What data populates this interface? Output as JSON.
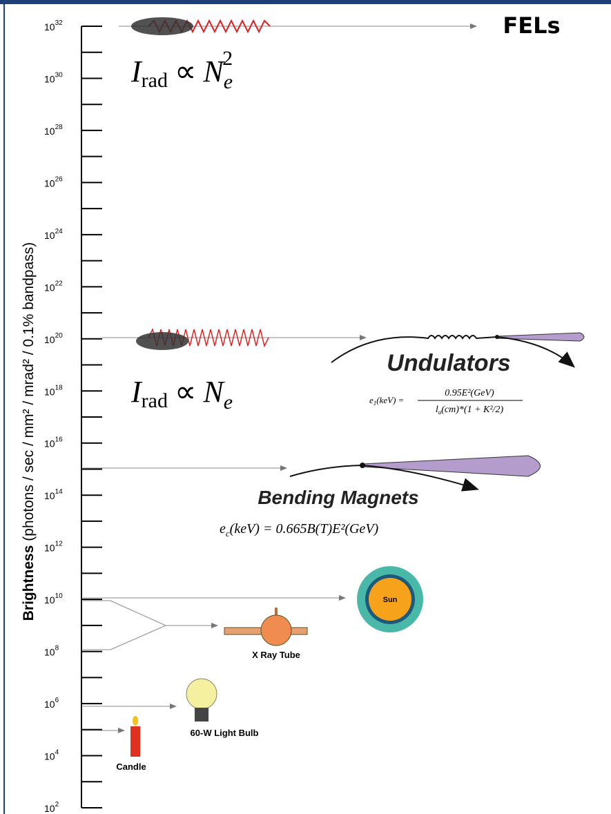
{
  "axis": {
    "title_bold": "Brightness",
    "title_rest": "(photons / sec / mm² / mrad² / 0.1% bandpass)",
    "ticks": [
      {
        "base": "10",
        "exp": "32"
      },
      {
        "base": "10",
        "exp": "30"
      },
      {
        "base": "10",
        "exp": "28"
      },
      {
        "base": "10",
        "exp": "26"
      },
      {
        "base": "10",
        "exp": "24"
      },
      {
        "base": "10",
        "exp": "22"
      },
      {
        "base": "10",
        "exp": "20"
      },
      {
        "base": "10",
        "exp": "18"
      },
      {
        "base": "10",
        "exp": "16"
      },
      {
        "base": "10",
        "exp": "14"
      },
      {
        "base": "10",
        "exp": "12"
      },
      {
        "base": "10",
        "exp": "10"
      },
      {
        "base": "10",
        "exp": "8"
      },
      {
        "base": "10",
        "exp": "6"
      },
      {
        "base": "10",
        "exp": "4"
      },
      {
        "base": "10",
        "exp": "2"
      }
    ]
  },
  "fel": {
    "label": "FELs",
    "formula": {
      "main": "I",
      "sub": "rad",
      "rel": "∝",
      "var": "N",
      "var_sub": "e",
      "sup": "2"
    }
  },
  "undulator": {
    "label": "Undulators",
    "formula": {
      "main": "I",
      "sub": "rad",
      "rel": "∝",
      "var": "N",
      "var_sub": "e"
    },
    "energy": {
      "lhs": "e",
      "lhs_sub": "1",
      "lhs_rest": "(keV) =",
      "numerator": "0.95E²(GeV)",
      "den_main": "l",
      "den_sub": "u",
      "den_rest": "(cm)*(1 + K²/2)"
    }
  },
  "bending": {
    "label": "Bending Magnets",
    "energy": {
      "lhs": "e",
      "lhs_sub": "c",
      "rest": "(keV) = 0.665B(T)E²(GeV)"
    }
  },
  "sources": {
    "sun": "Sun",
    "xray": "X Ray Tube",
    "bulb": "60-W Light Bulb",
    "candle": "Candle"
  }
}
